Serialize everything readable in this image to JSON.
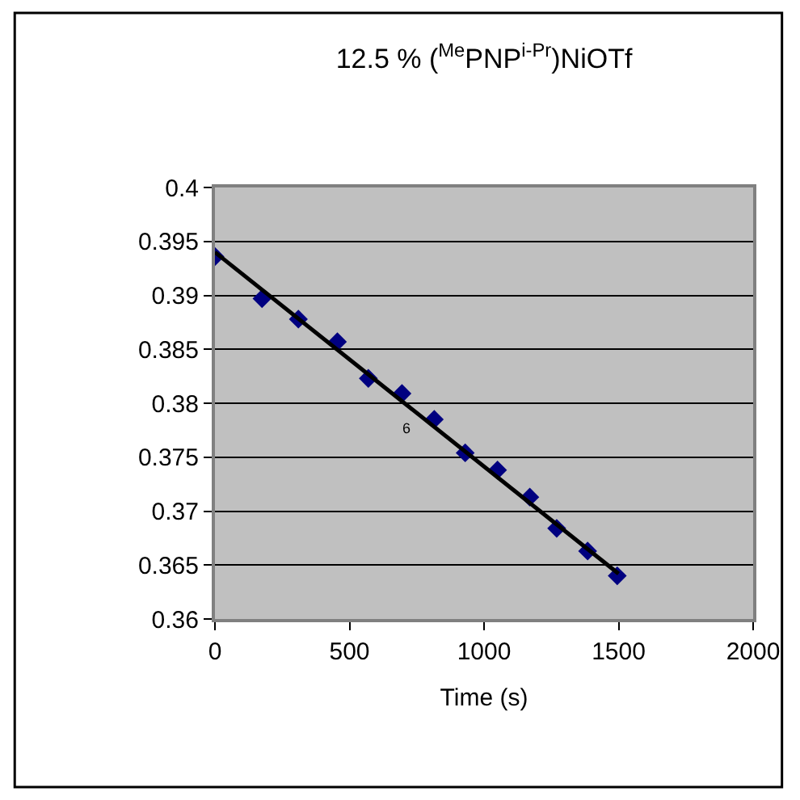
{
  "chart_data": {
    "type": "scatter",
    "title": "12.5 % ($^{Me}$PNP$^{i-Pr}$)NiOTf",
    "xlabel": "Time (s)",
    "series": [
      {
        "color": "#000080",
        "marker": "diamond",
        "x": [
          0,
          175,
          310,
          455,
          570,
          695,
          815,
          930,
          1050,
          1170,
          1270,
          1385,
          1495
        ],
        "values": [
          0.3936,
          0.3897,
          0.3878,
          0.3857,
          0.3823,
          0.3809,
          0.3785,
          0.3754,
          0.3738,
          0.3713,
          0.3684,
          0.3663,
          0.364
        ]
      },
      {
        "type": "line",
        "color": "#000000",
        "marker": "none",
        "x": [
          0,
          1500
        ],
        "values": [
          0.394,
          0.3642
        ]
      }
    ],
    "annotations": [
      "6"
    ],
    "xlim": [
      0,
      2000
    ],
    "xticks": [
      0,
      500,
      1000,
      1500,
      2000
    ],
    "ylim": [
      0.36,
      0.4
    ],
    "yticks": [
      0.36,
      0.365,
      0.37,
      0.375,
      0.38,
      0.385,
      0.39,
      0.395,
      0.4
    ],
    "grid": "y"
  }
}
